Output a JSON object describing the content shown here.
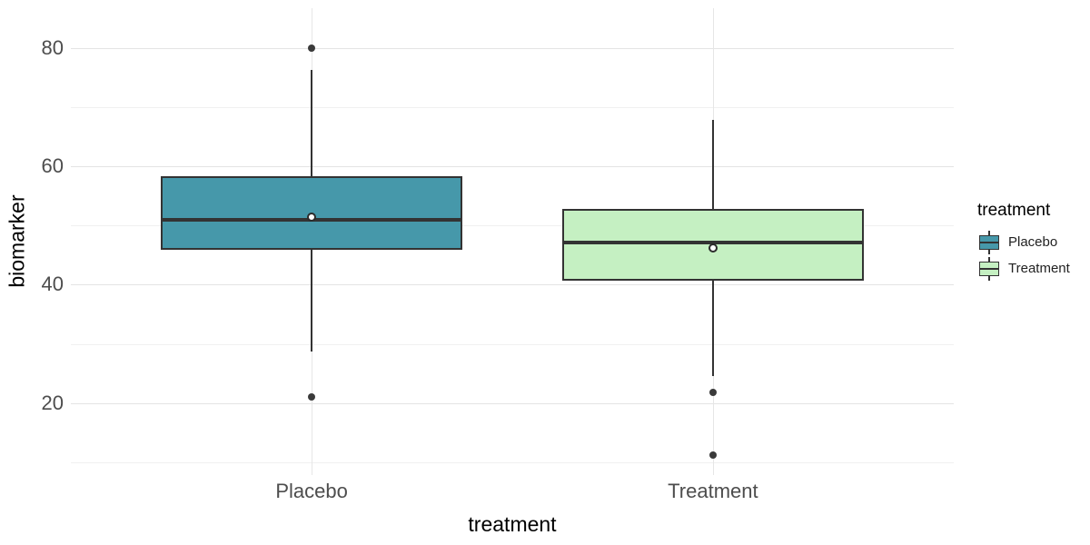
{
  "chart_data": {
    "type": "boxplot",
    "xlabel": "treatment",
    "ylabel": "biomarker",
    "categories": [
      "Placebo",
      "Treatment"
    ],
    "y_ticks": [
      20,
      40,
      60,
      80
    ],
    "y_minor_ticks": [
      10,
      30,
      50,
      70
    ],
    "ylim": [
      7.8,
      86.8
    ],
    "xlim": [
      0.4,
      2.6
    ],
    "box_width": 0.75,
    "grid": true,
    "series": [
      {
        "name": "Placebo",
        "position": 1,
        "fill": "#4698aa",
        "whisker_low": 28.7,
        "q1": 45.9,
        "median": 51,
        "q3": 58.4,
        "whisker_high": 76.3,
        "mean": 51.5,
        "outliers": [
          80,
          21
        ]
      },
      {
        "name": "Treatment",
        "position": 2,
        "fill": "#c5f0c2",
        "whisker_low": 24.6,
        "q1": 40.7,
        "median": 47.2,
        "q3": 52.8,
        "whisker_high": 67.9,
        "mean": 46.3,
        "outliers": [
          21.8,
          11.2
        ]
      }
    ],
    "legend": {
      "title": "treatment",
      "position": "right",
      "entries": [
        "Placebo",
        "Treatment"
      ]
    }
  }
}
